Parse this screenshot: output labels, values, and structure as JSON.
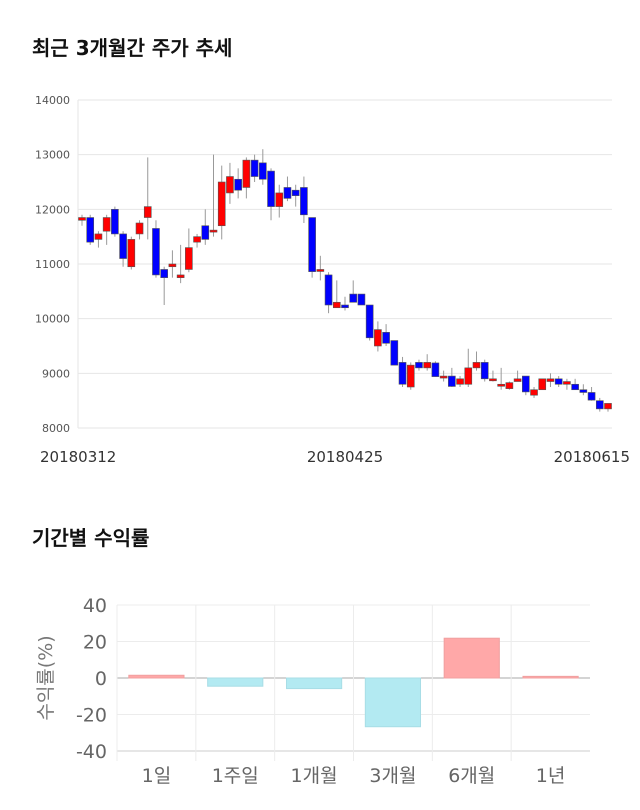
{
  "sections": {
    "price_title": "최근 3개월간 주가 추세",
    "return_title": "기간별 수익률"
  },
  "colors": {
    "up": "#ff0000",
    "down": "#0000ff",
    "pos_bar": "#ffa8a8",
    "neg_bar": "#b3eaf2"
  },
  "chart_data": [
    {
      "type": "candlestick",
      "title": "최근 3개월간 주가 추세",
      "ylim": [
        8000,
        14000
      ],
      "yticks": [
        8000,
        9000,
        10000,
        11000,
        12000,
        13000,
        14000
      ],
      "xtick_labels": [
        {
          "index": 0,
          "label": "20180312"
        },
        {
          "index": 32,
          "label": "20180425"
        },
        {
          "index": 64,
          "label": "20180615"
        }
      ],
      "grid": true,
      "ohlc": [
        [
          11800,
          11900,
          11700,
          11850
        ],
        [
          11850,
          11900,
          11350,
          11400
        ],
        [
          11450,
          11600,
          11300,
          11550
        ],
        [
          11600,
          11900,
          11350,
          11850
        ],
        [
          12000,
          12050,
          11500,
          11550
        ],
        [
          11550,
          11600,
          10950,
          11100
        ],
        [
          10950,
          11500,
          10900,
          11450
        ],
        [
          11550,
          11800,
          11450,
          11750
        ],
        [
          11850,
          12950,
          11450,
          12050
        ],
        [
          11650,
          11800,
          10750,
          10800
        ],
        [
          10900,
          10950,
          10250,
          10750
        ],
        [
          10950,
          11250,
          10750,
          11000
        ],
        [
          10750,
          11350,
          10650,
          10800
        ],
        [
          10900,
          11650,
          10850,
          11300
        ],
        [
          11400,
          11550,
          11300,
          11500
        ],
        [
          11700,
          12000,
          11350,
          11450
        ],
        [
          11600,
          13000,
          11500,
          11620
        ],
        [
          11700,
          12800,
          11450,
          12500
        ],
        [
          12300,
          12850,
          12100,
          12600
        ],
        [
          12550,
          12750,
          12200,
          12350
        ],
        [
          12400,
          12950,
          12200,
          12900
        ],
        [
          12900,
          13000,
          12500,
          12600
        ],
        [
          12850,
          13100,
          12450,
          12550
        ],
        [
          12700,
          12750,
          11800,
          12050
        ],
        [
          12050,
          12450,
          11850,
          12300
        ],
        [
          12400,
          12600,
          12150,
          12200
        ],
        [
          12350,
          12450,
          12050,
          12250
        ],
        [
          12400,
          12600,
          11750,
          11900
        ],
        [
          11850,
          11850,
          10750,
          10860
        ],
        [
          10900,
          11150,
          10700,
          10900
        ],
        [
          10800,
          10850,
          10100,
          10250
        ],
        [
          10200,
          10700,
          10200,
          10300
        ],
        [
          10250,
          10400,
          10150,
          10200
        ],
        [
          10450,
          10700,
          10300,
          10300
        ],
        [
          10450,
          10450,
          10250,
          10250
        ],
        [
          10250,
          10250,
          9600,
          9650
        ],
        [
          9500,
          9950,
          9400,
          9800
        ],
        [
          9750,
          9900,
          9500,
          9550
        ],
        [
          9600,
          9600,
          9150,
          9150
        ],
        [
          9200,
          9300,
          8750,
          8800
        ],
        [
          8750,
          9200,
          8700,
          9150
        ],
        [
          9200,
          9250,
          9050,
          9100
        ],
        [
          9100,
          9350,
          9050,
          9200
        ],
        [
          9190,
          9220,
          8940,
          8940
        ],
        [
          8950,
          9050,
          8850,
          8950
        ],
        [
          8950,
          9100,
          8750,
          8760
        ],
        [
          8800,
          8950,
          8750,
          8900
        ],
        [
          8800,
          9450,
          8750,
          9100
        ],
        [
          9100,
          9400,
          9050,
          9200
        ],
        [
          9200,
          9250,
          8850,
          8900
        ],
        [
          8900,
          9050,
          8850,
          8900
        ],
        [
          8800,
          9100,
          8700,
          8800
        ],
        [
          8720,
          8850,
          8700,
          8830
        ],
        [
          8850,
          9050,
          8850,
          8900
        ],
        [
          8950,
          8950,
          8600,
          8660
        ],
        [
          8600,
          8750,
          8550,
          8700
        ],
        [
          8700,
          8850,
          8700,
          8900
        ],
        [
          8850,
          9000,
          8750,
          8900
        ],
        [
          8900,
          8950,
          8750,
          8800
        ],
        [
          8800,
          8900,
          8700,
          8850
        ],
        [
          8800,
          8900,
          8700,
          8700
        ],
        [
          8700,
          8800,
          8600,
          8650
        ],
        [
          8650,
          8750,
          8500,
          8510
        ],
        [
          8500,
          8550,
          8300,
          8350
        ],
        [
          8350,
          8450,
          8300,
          8450
        ]
      ]
    },
    {
      "type": "bar",
      "title": "기간별 수익률",
      "ylabel": "수익률(%)",
      "ylim": [
        -40,
        40
      ],
      "yticks": [
        40,
        20,
        0,
        -20,
        -40
      ],
      "categories": [
        "1일",
        "1주일",
        "1개월",
        "3개월",
        "6개월",
        "1년"
      ],
      "values": [
        1.5,
        -4.5,
        -5.8,
        -26.7,
        21.8,
        0.9
      ],
      "grid": true
    }
  ]
}
